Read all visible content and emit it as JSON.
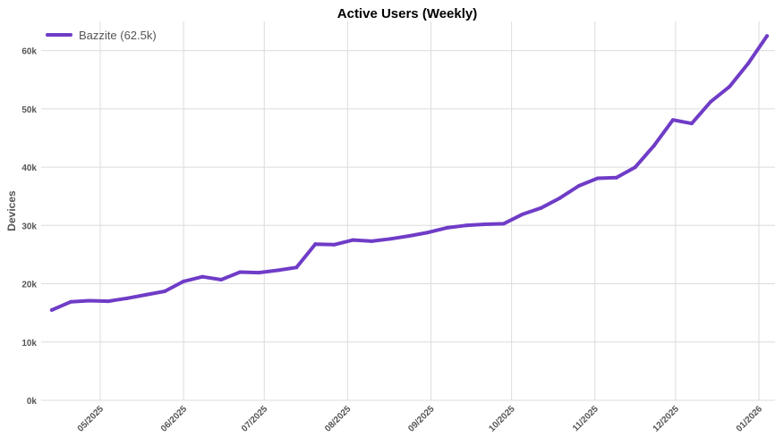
{
  "chart_data": {
    "type": "line",
    "title": "Active Users (Weekly)",
    "xlabel": "",
    "ylabel": "Devices",
    "ylim": [
      0,
      65000
    ],
    "y_ticks": [
      {
        "value": 0,
        "label": "0k"
      },
      {
        "value": 10000,
        "label": "10k"
      },
      {
        "value": 20000,
        "label": "20k"
      },
      {
        "value": 30000,
        "label": "30k"
      },
      {
        "value": 40000,
        "label": "40k"
      },
      {
        "value": 50000,
        "label": "50k"
      },
      {
        "value": 60000,
        "label": "60k"
      }
    ],
    "x_ticks": [
      {
        "date": "2025-05-01",
        "label": "05/2025"
      },
      {
        "date": "2025-06-01",
        "label": "06/2025"
      },
      {
        "date": "2025-07-01",
        "label": "07/2025"
      },
      {
        "date": "2025-08-01",
        "label": "08/2025"
      },
      {
        "date": "2025-09-01",
        "label": "09/2025"
      },
      {
        "date": "2025-10-01",
        "label": "10/2025"
      },
      {
        "date": "2025-11-01",
        "label": "11/2025"
      },
      {
        "date": "2025-12-01",
        "label": "12/2025"
      },
      {
        "date": "2026-01-01",
        "label": "01/2026"
      }
    ],
    "grid": true,
    "legend_position": "top-left",
    "series": [
      {
        "name": "Bazzite (62.5k)",
        "color": "#6f3cc7",
        "points": [
          {
            "x": "2025-04-13",
            "y": 15500
          },
          {
            "x": "2025-04-20",
            "y": 16900
          },
          {
            "x": "2025-04-27",
            "y": 17100
          },
          {
            "x": "2025-05-04",
            "y": 17000
          },
          {
            "x": "2025-05-11",
            "y": 17500
          },
          {
            "x": "2025-05-18",
            "y": 18100
          },
          {
            "x": "2025-05-25",
            "y": 18700
          },
          {
            "x": "2025-06-01",
            "y": 20400
          },
          {
            "x": "2025-06-08",
            "y": 21200
          },
          {
            "x": "2025-06-15",
            "y": 20700
          },
          {
            "x": "2025-06-22",
            "y": 22000
          },
          {
            "x": "2025-06-29",
            "y": 21900
          },
          {
            "x": "2025-07-06",
            "y": 22300
          },
          {
            "x": "2025-07-13",
            "y": 22800
          },
          {
            "x": "2025-07-20",
            "y": 26800
          },
          {
            "x": "2025-07-27",
            "y": 26700
          },
          {
            "x": "2025-08-03",
            "y": 27500
          },
          {
            "x": "2025-08-10",
            "y": 27300
          },
          {
            "x": "2025-08-17",
            "y": 27700
          },
          {
            "x": "2025-08-24",
            "y": 28200
          },
          {
            "x": "2025-08-31",
            "y": 28800
          },
          {
            "x": "2025-09-07",
            "y": 29600
          },
          {
            "x": "2025-09-14",
            "y": 30000
          },
          {
            "x": "2025-09-21",
            "y": 30200
          },
          {
            "x": "2025-09-28",
            "y": 30300
          },
          {
            "x": "2025-10-05",
            "y": 31900
          },
          {
            "x": "2025-10-12",
            "y": 33000
          },
          {
            "x": "2025-10-19",
            "y": 34700
          },
          {
            "x": "2025-10-26",
            "y": 36800
          },
          {
            "x": "2025-11-02",
            "y": 38100
          },
          {
            "x": "2025-11-09",
            "y": 38200
          },
          {
            "x": "2025-11-16",
            "y": 40000
          },
          {
            "x": "2025-11-23",
            "y": 43700
          },
          {
            "x": "2025-11-30",
            "y": 48100
          },
          {
            "x": "2025-12-07",
            "y": 47500
          },
          {
            "x": "2025-12-14",
            "y": 51200
          },
          {
            "x": "2025-12-21",
            "y": 53800
          },
          {
            "x": "2025-12-28",
            "y": 57800
          },
          {
            "x": "2026-01-04",
            "y": 62500
          }
        ]
      }
    ]
  }
}
